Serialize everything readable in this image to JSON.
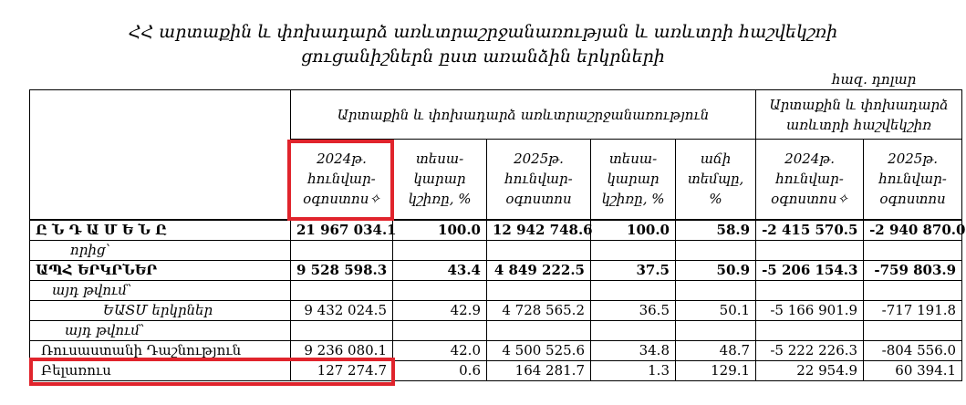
{
  "title": {
    "line1": "ՀՀ արտաքին և փոխադարձ առևտրաշրջանառության և առևտրի հաշվեկշռի",
    "line2": "ցուցանիշներն ըստ առանձին երկրների"
  },
  "unit": "հազ. դոլար",
  "headers": {
    "group1": "Արտաքին և փոխադարձ առևտրաշրջանառություն",
    "group2": "Արտաքին և փոխադարձ առևտրի հաշվեկշիռ",
    "cols": [
      "2024թ. հունվար-օգոստոս✧",
      "տեսա-կարար կշիռը, %",
      "2025թ. հունվար-օգոստոս",
      "տեսա-կարար կշիռը, %",
      "աճի տեմպը, %",
      "2024թ. հունվար-օգոստոս✧",
      "2025թ. հունվար-օգոստոս"
    ]
  },
  "rows": [
    {
      "label": "Ը Ն Դ Ա Մ Ե Ն Ը",
      "values": [
        "21 967 034.1",
        "100.0",
        "12 942 748.6",
        "100.0",
        "58.9",
        "-2 415 570.5",
        "-2 940 870.0"
      ]
    },
    {
      "label": "որից՝",
      "values": []
    },
    {
      "label": "ԱՊՀ ԵՐԿՐՆԵՐ",
      "values": [
        "9 528 598.3",
        "43.4",
        "4 849 222.5",
        "37.5",
        "50.9",
        "-5 206 154.3",
        "-759 803.9"
      ]
    },
    {
      "label": "այդ թվում՝",
      "values": []
    },
    {
      "label": "ԵԱՏՄ երկրներ",
      "values": [
        "9 432 024.5",
        "42.9",
        "4 728 565.2",
        "36.5",
        "50.1",
        "-5 166 901.9",
        "-717 191.8"
      ]
    },
    {
      "label": "այդ թվում՝",
      "values": []
    },
    {
      "label": "Ռուսաստանի Դաշնություն",
      "values": [
        "9 236 080.1",
        "42.0",
        "4 500 525.6",
        "34.8",
        "48.7",
        "-5 222 226.3",
        "-804 556.0"
      ]
    },
    {
      "label": "Բելառուս",
      "values": [
        "127 274.7",
        "0.6",
        "164 281.7",
        "1.3",
        "129.1",
        "22 954.9",
        "60 394.1"
      ]
    }
  ]
}
